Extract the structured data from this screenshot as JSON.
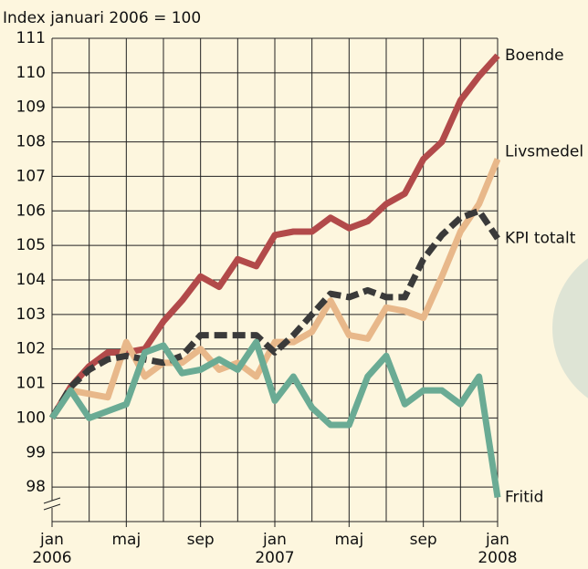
{
  "chart_data": {
    "type": "line",
    "title": "Index januari 2006 = 100",
    "categories": [
      "jan 2006",
      null,
      null,
      null,
      "maj",
      null,
      null,
      null,
      "sep",
      null,
      null,
      null,
      "jan 2007",
      null,
      null,
      null,
      "maj",
      null,
      null,
      null,
      "sep",
      null,
      null,
      null,
      "jan 2008"
    ],
    "ylim": [
      97,
      111
    ],
    "yticks": [
      98,
      99,
      100,
      101,
      102,
      103,
      104,
      105,
      106,
      107,
      108,
      109,
      110,
      111
    ],
    "grid": true,
    "series": [
      {
        "name": "Boende",
        "color": "#b24a4a",
        "values": [
          100,
          100.9,
          101.5,
          101.9,
          101.9,
          102.0,
          102.8,
          103.4,
          104.1,
          103.8,
          104.6,
          104.4,
          105.3,
          105.4,
          105.4,
          105.8,
          105.5,
          105.7,
          106.2,
          106.5,
          107.5,
          108.0,
          109.2,
          109.9,
          110.5
        ]
      },
      {
        "name": "Livsmedel",
        "color": "#e8b88a",
        "values": [
          100,
          100.8,
          100.7,
          100.6,
          102.2,
          101.2,
          101.6,
          101.6,
          102.0,
          101.4,
          101.6,
          101.2,
          102.2,
          102.2,
          102.5,
          103.4,
          102.4,
          102.3,
          103.2,
          103.1,
          102.9,
          104.1,
          105.4,
          106.2,
          107.5
        ]
      },
      {
        "name": "KPI totalt",
        "color": "#3a3a3a",
        "dashed": true,
        "values": [
          100,
          100.9,
          101.4,
          101.7,
          101.8,
          101.7,
          101.6,
          101.8,
          102.4,
          102.4,
          102.4,
          102.4,
          101.9,
          102.4,
          103.0,
          103.6,
          103.5,
          103.7,
          103.5,
          103.5,
          104.6,
          105.3,
          105.8,
          106.0,
          105.2
        ]
      },
      {
        "name": "Fritid",
        "color": "#6aab94",
        "values": [
          100,
          100.8,
          100.0,
          100.2,
          100.4,
          101.9,
          102.1,
          101.3,
          101.4,
          101.7,
          101.4,
          102.2,
          100.5,
          101.2,
          100.3,
          99.8,
          99.8,
          101.2,
          101.8,
          100.4,
          100.8,
          100.8,
          100.4,
          101.2,
          97.7
        ]
      }
    ]
  }
}
